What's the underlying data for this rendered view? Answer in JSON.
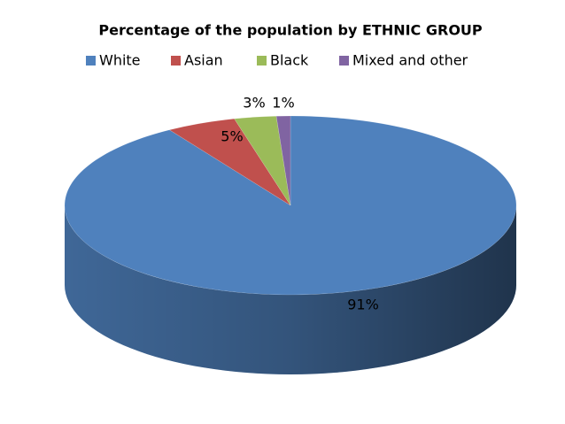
{
  "chart_data": {
    "type": "pie3d",
    "title": "Percentage of the population by ETHNIC GROUP",
    "categories": [
      "White",
      "Asian",
      "Black",
      "Mixed and other"
    ],
    "values": [
      91,
      5,
      3,
      1
    ],
    "value_labels": [
      "91%",
      "5%",
      "3%",
      "1%"
    ],
    "colors": [
      "#4f81bd",
      "#c0504d",
      "#9bbb59",
      "#8064a2"
    ],
    "legend": "top"
  }
}
